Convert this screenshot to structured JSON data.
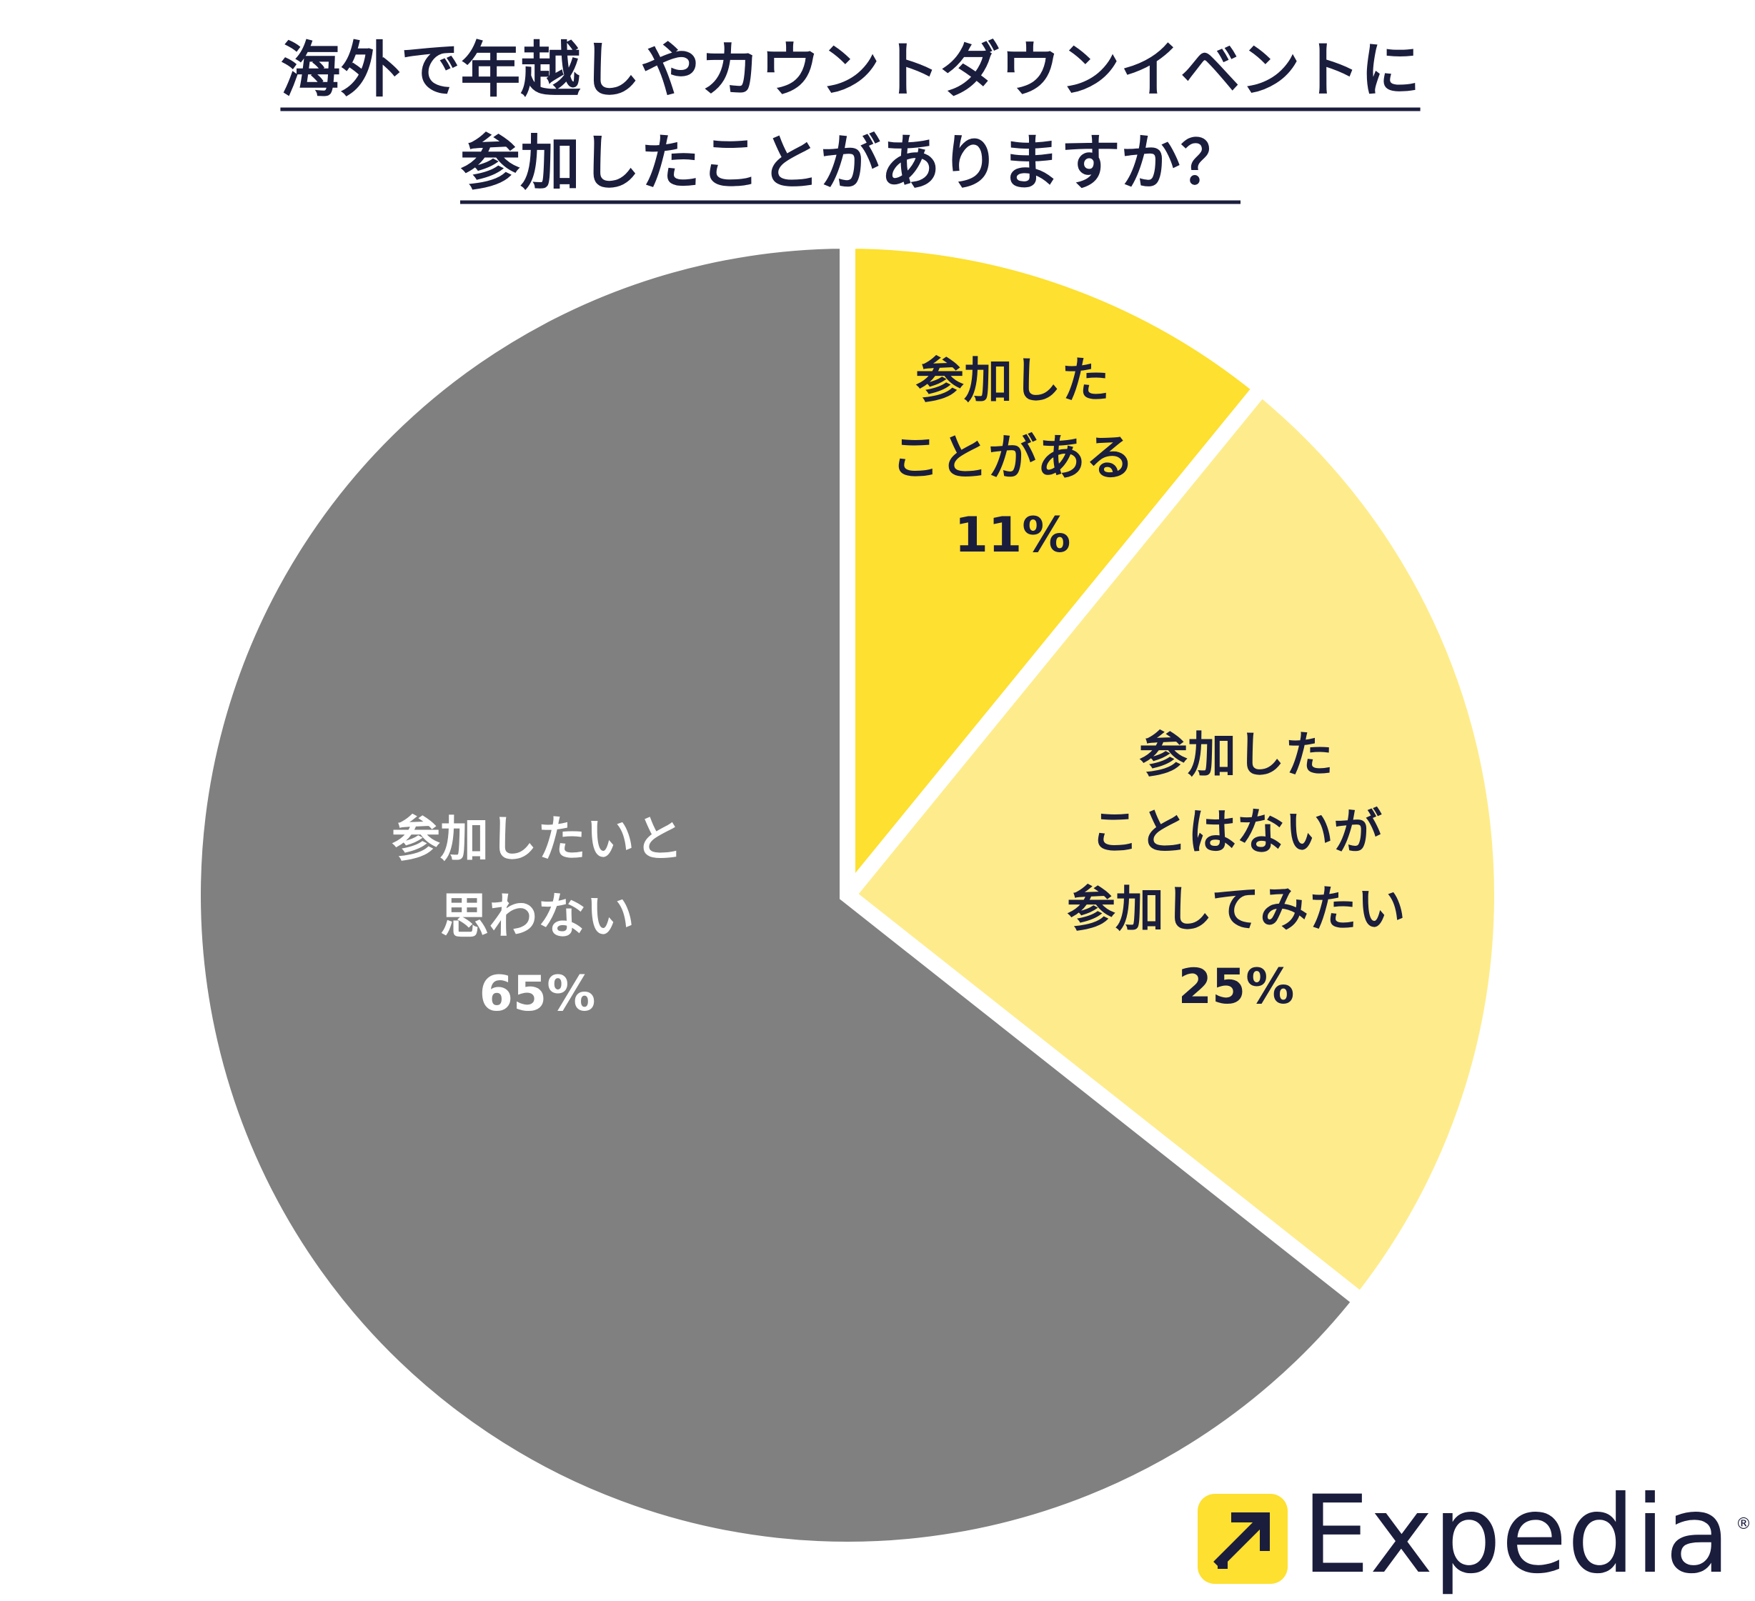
{
  "chart_data": {
    "type": "pie",
    "title": [
      "海外で年越しやカウントダウンイベントに",
      "参加したことがありますか？"
    ],
    "categories": [
      "参加した\nことがある",
      "参加した\nことはないが\n参加してみたい",
      "参加したいと\n思わない"
    ],
    "values": [
      11,
      25,
      65
    ],
    "value_labels": [
      "11%",
      "25%",
      "65%"
    ],
    "colors": [
      "#fde030",
      "#feec8c",
      "#808080"
    ],
    "label_colors": [
      "#1b1d3d",
      "#1b1d3d",
      "#ffffff"
    ]
  },
  "logo": {
    "text": "Expedia",
    "mark": "®"
  }
}
